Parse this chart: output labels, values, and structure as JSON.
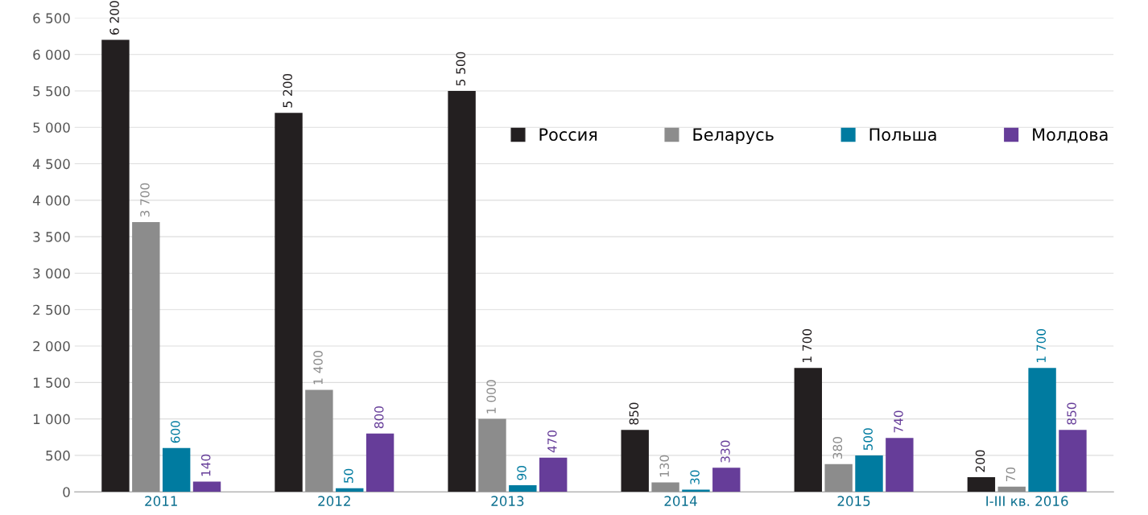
{
  "chart_data": {
    "type": "bar",
    "categories": [
      "2011",
      "2012",
      "2013",
      "2014",
      "2015",
      "I-III кв. 2016"
    ],
    "series": [
      {
        "name": "Россия",
        "color": "#231f20",
        "values": [
          6200,
          5200,
          5500,
          850,
          1700,
          200
        ],
        "value_labels": [
          "6 200",
          "5 200",
          "5 500",
          "850",
          "1 700",
          "200"
        ]
      },
      {
        "name": "Беларусь",
        "color": "#8c8c8c",
        "values": [
          3700,
          1400,
          1000,
          130,
          380,
          70
        ],
        "value_labels": [
          "3 700",
          "1 400",
          "1 000",
          "130",
          "380",
          "70"
        ]
      },
      {
        "name": "Польша",
        "color": "#007ba0",
        "values": [
          600,
          50,
          90,
          30,
          500,
          1700
        ],
        "value_labels": [
          "600",
          "50",
          "90",
          "30",
          "500",
          "1 700"
        ]
      },
      {
        "name": "Молдова",
        "color": "#663d99",
        "values": [
          140,
          800,
          470,
          330,
          740,
          850
        ],
        "value_labels": [
          "140",
          "800",
          "470",
          "330",
          "740",
          "850"
        ]
      }
    ],
    "ylim": [
      0,
      6500
    ],
    "yticks": [
      0,
      500,
      {
        "value": 1000,
        "label": "1 000"
      },
      {
        "value": 1500,
        "label": "1 500"
      },
      {
        "value": 2000,
        "label": "2 000"
      },
      {
        "value": 2500,
        "label": "2 500"
      },
      {
        "value": 3000,
        "label": "3 000"
      },
      {
        "value": 3500,
        "label": "3 500"
      },
      {
        "value": 4000,
        "label": "4 000"
      },
      {
        "value": 4500,
        "label": "4 500"
      },
      {
        "value": 5000,
        "label": "5 000"
      },
      {
        "value": 5500,
        "label": "5 500"
      },
      {
        "value": 6000,
        "label": "6 000"
      },
      {
        "value": 6500,
        "label": "6 500"
      }
    ],
    "grid": "y",
    "legend": "top right"
  }
}
